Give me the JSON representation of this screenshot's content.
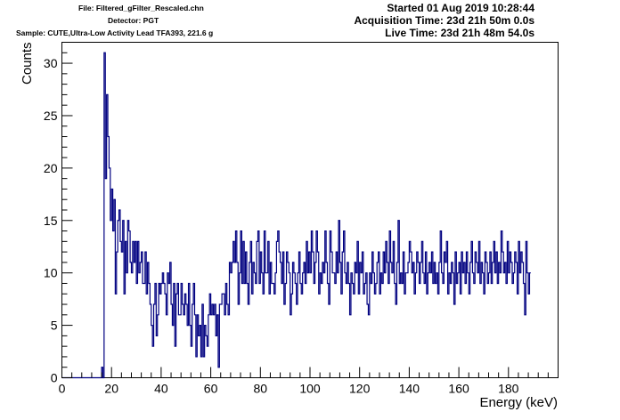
{
  "header": {
    "file": "File: Filtered_gFilter_Rescaled.chn",
    "detector": "Detector: PGT",
    "sample": "Sample: CUTE,Ultra-Low Activity Lead TFA393, 221.6 g",
    "started": "Started 01 Aug 2019 10:28:44",
    "acquisition": "Acquisition Time: 23d 21h 50m 0.0s",
    "live": "Live Time: 23d 21h 48m 54.0s"
  },
  "chart_data": {
    "type": "line",
    "style": "step-histogram",
    "xlabel": "Energy (keV)",
    "ylabel": "Counts",
    "xlim": [
      0,
      200
    ],
    "ylim": [
      0,
      32
    ],
    "x_ticks": [
      0,
      20,
      40,
      60,
      80,
      100,
      120,
      140,
      160,
      180
    ],
    "y_ticks": [
      0,
      5,
      10,
      15,
      20,
      25,
      30
    ],
    "grid": false,
    "line_color": "#000080",
    "bin_start": 16,
    "bin_width": 0.5,
    "values": [
      1,
      0,
      31,
      19,
      27,
      23,
      20,
      15,
      18,
      14,
      17,
      8,
      12,
      15,
      16,
      13,
      12,
      15,
      8,
      13,
      10,
      15,
      14,
      11,
      10,
      13,
      11,
      13,
      9,
      13,
      10,
      11,
      12,
      9,
      9,
      12,
      8,
      11,
      9,
      7,
      5,
      3,
      7,
      9,
      4,
      6,
      9,
      8,
      9,
      10,
      9,
      8,
      6,
      10,
      9,
      11,
      7,
      5,
      9,
      3,
      8,
      9,
      6,
      6,
      9,
      7,
      6,
      8,
      7,
      5,
      9,
      5,
      3,
      7,
      9,
      6,
      2,
      6,
      4,
      5,
      2,
      7,
      2,
      5,
      4,
      3,
      6,
      8,
      6,
      7,
      6,
      7,
      4,
      6,
      1,
      7,
      7,
      8,
      8,
      6,
      9,
      7,
      6,
      11,
      10,
      11,
      13,
      11,
      14,
      11,
      7,
      10,
      14,
      9,
      13,
      9,
      12,
      9,
      7,
      11,
      13,
      8,
      11,
      10,
      9,
      13,
      14,
      9,
      12,
      10,
      8,
      14,
      10,
      10,
      13,
      8,
      11,
      9,
      9,
      8,
      10,
      13,
      14,
      12,
      11,
      9,
      12,
      7,
      9,
      12,
      11,
      10,
      6,
      8,
      11,
      10,
      9,
      7,
      10,
      12,
      9,
      8,
      10,
      11,
      9,
      13,
      10,
      12,
      10,
      14,
      12,
      9,
      11,
      14,
      12,
      8,
      10,
      9,
      11,
      10,
      14,
      11,
      9,
      7,
      14,
      12,
      10,
      10,
      9,
      12,
      10,
      15,
      11,
      8,
      12,
      14,
      10,
      9,
      11,
      9,
      6,
      10,
      9,
      8,
      11,
      10,
      13,
      8,
      11,
      10,
      12,
      8,
      9,
      10,
      7,
      6,
      10,
      9,
      12,
      10,
      8,
      9,
      11,
      12,
      8,
      10,
      9,
      12,
      10,
      13,
      11,
      9,
      14,
      11,
      10,
      13,
      9,
      7,
      11,
      15,
      9,
      10,
      9,
      12,
      8,
      10,
      10,
      11,
      13,
      12,
      10,
      11,
      8,
      10,
      12,
      11,
      9,
      11,
      13,
      10,
      9,
      12,
      8,
      10,
      11,
      10,
      12,
      9,
      11,
      9,
      10,
      8,
      11,
      14,
      10,
      9,
      12,
      11,
      13,
      8,
      10,
      9,
      11,
      10,
      7,
      12,
      9,
      10,
      11,
      8,
      12,
      10,
      11,
      9,
      12,
      10,
      8,
      11,
      13,
      10,
      9,
      12,
      11,
      10,
      13,
      9,
      11,
      10,
      8,
      12,
      11,
      9,
      10,
      12,
      9,
      11,
      13,
      10,
      12,
      9,
      11,
      10,
      14,
      12,
      10,
      11,
      9,
      13,
      10,
      12,
      11,
      9,
      10,
      12,
      11,
      8,
      13,
      10,
      12,
      11,
      9,
      6,
      13,
      10,
      8,
      10
    ]
  }
}
